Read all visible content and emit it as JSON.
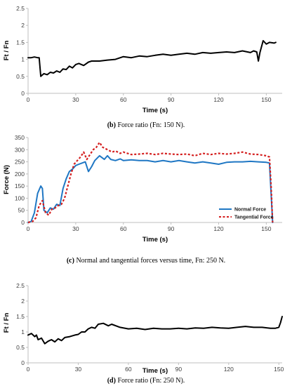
{
  "chart_data": [
    {
      "type": "line",
      "ylabel": "Ft / Fn",
      "xlabel": "Time (s)",
      "xlim": [
        0,
        160
      ],
      "ylim": [
        0,
        2.5
      ],
      "xticks": [
        "0",
        "30",
        "60",
        "90",
        "120",
        "150"
      ],
      "yticks": [
        "0",
        "0.5",
        "1",
        "1.5",
        "2",
        "2.5"
      ],
      "caption": {
        "letter": "(b)",
        "text": " Force ratio (Fn: 150 N)."
      },
      "series": [
        {
          "color": "#000000",
          "x": [
            0,
            2,
            4,
            6,
            7,
            8,
            10,
            12,
            14,
            16,
            18,
            20,
            22,
            24,
            26,
            28,
            30,
            32,
            35,
            38,
            40,
            45,
            50,
            55,
            60,
            65,
            70,
            75,
            80,
            85,
            90,
            95,
            100,
            105,
            110,
            115,
            120,
            125,
            130,
            135,
            140,
            142,
            144,
            145,
            146,
            148,
            150,
            152,
            155,
            156
          ],
          "y": [
            1.05,
            1.05,
            1.07,
            1.05,
            1.05,
            0.5,
            0.58,
            0.55,
            0.62,
            0.6,
            0.66,
            0.62,
            0.72,
            0.7,
            0.8,
            0.75,
            0.85,
            0.88,
            0.82,
            0.92,
            0.95,
            0.95,
            0.98,
            1.0,
            1.08,
            1.05,
            1.1,
            1.08,
            1.12,
            1.15,
            1.12,
            1.15,
            1.18,
            1.15,
            1.2,
            1.18,
            1.2,
            1.22,
            1.2,
            1.25,
            1.2,
            1.25,
            1.22,
            0.95,
            1.2,
            1.55,
            1.45,
            1.5,
            1.48,
            1.5
          ]
        }
      ]
    },
    {
      "type": "line",
      "ylabel": "Force (N)",
      "xlabel": "Time (s)",
      "xlim": [
        0,
        160
      ],
      "ylim": [
        0,
        350
      ],
      "xticks": [
        "0",
        "30",
        "60",
        "90",
        "120",
        "150"
      ],
      "yticks": [
        "0",
        "50",
        "100",
        "150",
        "200",
        "250",
        "300",
        "350"
      ],
      "caption": {
        "letter": "(c)",
        "text": " Normal and tangential forces versus time, Fn: 250 N."
      },
      "series": [
        {
          "name": "Normal Force",
          "color": "#1f77c4",
          "dash": "",
          "x": [
            0,
            2,
            4,
            6,
            8,
            9,
            10,
            12,
            14,
            16,
            18,
            20,
            22,
            24,
            26,
            28,
            30,
            32,
            34,
            36,
            38,
            40,
            42,
            45,
            48,
            50,
            52,
            55,
            58,
            60,
            65,
            70,
            75,
            80,
            85,
            90,
            95,
            100,
            105,
            110,
            115,
            120,
            125,
            130,
            135,
            140,
            145,
            150,
            152,
            153,
            154
          ],
          "y": [
            0,
            5,
            40,
            120,
            150,
            140,
            50,
            40,
            60,
            55,
            75,
            70,
            140,
            180,
            210,
            220,
            235,
            240,
            245,
            250,
            210,
            230,
            255,
            275,
            260,
            275,
            260,
            255,
            262,
            255,
            258,
            255,
            255,
            250,
            255,
            250,
            255,
            250,
            245,
            250,
            245,
            240,
            248,
            250,
            250,
            252,
            250,
            248,
            245,
            120,
            0
          ]
        },
        {
          "name": "Tangential Force",
          "color": "#d41e1e",
          "dash": "3,2.5",
          "x": [
            0,
            3,
            5,
            7,
            9,
            11,
            13,
            15,
            17,
            19,
            21,
            23,
            25,
            27,
            29,
            31,
            33,
            35,
            37,
            39,
            41,
            43,
            45,
            47,
            50,
            53,
            55,
            58,
            60,
            65,
            70,
            75,
            80,
            85,
            90,
            95,
            100,
            105,
            110,
            115,
            120,
            125,
            130,
            135,
            140,
            145,
            150,
            152,
            153,
            154
          ],
          "y": [
            0,
            5,
            20,
            70,
            90,
            40,
            30,
            55,
            60,
            70,
            75,
            100,
            150,
            200,
            240,
            255,
            270,
            290,
            260,
            280,
            300,
            310,
            330,
            310,
            300,
            290,
            295,
            285,
            290,
            280,
            282,
            285,
            280,
            285,
            282,
            280,
            282,
            275,
            285,
            280,
            285,
            282,
            285,
            290,
            282,
            280,
            275,
            270,
            150,
            0
          ]
        }
      ],
      "legend": {
        "placement": "bottom-right"
      }
    },
    {
      "type": "line",
      "ylabel": "Ft / Fn",
      "xlabel": "Time (s)",
      "xlim": [
        0,
        152
      ],
      "ylim": [
        0,
        2.5
      ],
      "xticks": [
        "0",
        "30",
        "60",
        "90",
        "120",
        "150"
      ],
      "yticks": [
        "0",
        "0.5",
        "1",
        "1.5",
        "2",
        "2.5"
      ],
      "caption": {
        "letter": "(d)",
        "text": " Force ratio (Fn: 250 N)."
      },
      "series": [
        {
          "color": "#000000",
          "x": [
            0,
            2,
            4,
            5,
            6,
            8,
            10,
            12,
            14,
            16,
            18,
            20,
            22,
            25,
            28,
            30,
            32,
            34,
            36,
            38,
            40,
            42,
            45,
            48,
            50,
            55,
            60,
            65,
            70,
            75,
            80,
            85,
            90,
            95,
            100,
            105,
            110,
            115,
            120,
            125,
            130,
            135,
            140,
            145,
            148,
            150,
            151,
            152
          ],
          "y": [
            0.9,
            0.95,
            0.85,
            0.9,
            0.75,
            0.8,
            0.62,
            0.7,
            0.75,
            0.68,
            0.78,
            0.72,
            0.82,
            0.85,
            0.9,
            0.92,
            1.0,
            1.0,
            1.1,
            1.15,
            1.12,
            1.25,
            1.28,
            1.2,
            1.25,
            1.15,
            1.1,
            1.12,
            1.08,
            1.12,
            1.1,
            1.1,
            1.12,
            1.1,
            1.13,
            1.12,
            1.15,
            1.13,
            1.12,
            1.15,
            1.18,
            1.15,
            1.15,
            1.12,
            1.12,
            1.15,
            1.3,
            1.5
          ]
        }
      ]
    }
  ]
}
